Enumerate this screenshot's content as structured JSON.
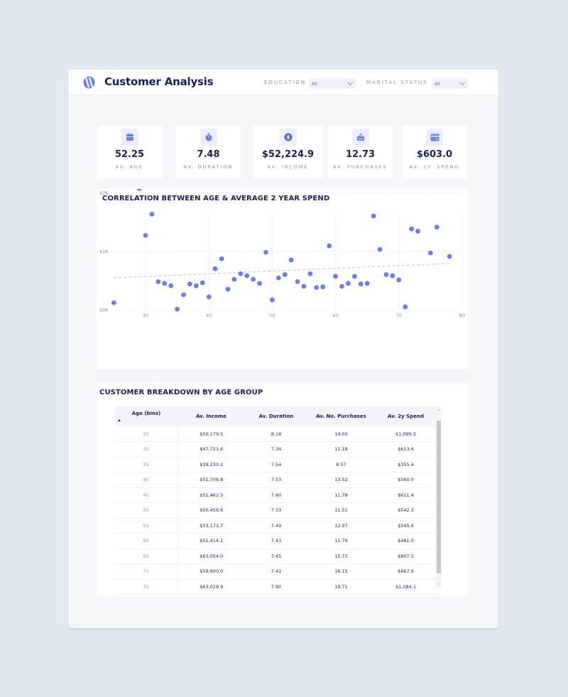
{
  "header": {
    "title": "Customer Analysis",
    "filters": [
      {
        "label": "EDUCATION",
        "value": "All"
      },
      {
        "label": "MARITAL STATUS",
        "value": "All"
      }
    ]
  },
  "kpis": [
    {
      "icon": "calendar-icon",
      "value": "52.25",
      "label": "AV. AGE"
    },
    {
      "icon": "stopwatch-icon",
      "value": "7.48",
      "label": "AV. DURATION"
    },
    {
      "icon": "dollar-coin-icon",
      "value": "$52,224.9",
      "label": "AV. INCOME"
    },
    {
      "icon": "shopping-basket-icon",
      "value": "12.73",
      "label": "AV. PURCHASES"
    },
    {
      "icon": "credit-card-icon",
      "value": "$603.0",
      "label": "AV. 2Y. SPEND"
    }
  ],
  "colors": {
    "accent": "#6b7fe3",
    "navy": "#1a2056",
    "trend": "#c8cbd8"
  },
  "chart_data": {
    "type": "scatter",
    "title": "CORRELATION BETWEEN AGE & AVERAGE 2 YEAR SPEND",
    "xlabel": "",
    "ylabel": "",
    "x_ticks": [
      "30",
      "40",
      "50",
      "60",
      "70",
      "80"
    ],
    "y_ticks": [
      "$0K",
      "$1K",
      "$2K"
    ],
    "xlim": [
      25,
      80
    ],
    "ylim": [
      0,
      2200
    ],
    "grid": true,
    "trendline": {
      "style": "dashed",
      "from": [
        25,
        545
      ],
      "to": [
        78,
        790
      ]
    },
    "points": [
      [
        25,
        120
      ],
      [
        29,
        2070
      ],
      [
        30,
        1270
      ],
      [
        31,
        1630
      ],
      [
        32,
        480
      ],
      [
        33,
        450
      ],
      [
        34,
        410
      ],
      [
        35,
        10
      ],
      [
        36,
        255
      ],
      [
        37,
        440
      ],
      [
        38,
        410
      ],
      [
        39,
        460
      ],
      [
        40,
        220
      ],
      [
        41,
        700
      ],
      [
        42,
        870
      ],
      [
        43,
        350
      ],
      [
        44,
        520
      ],
      [
        45,
        615
      ],
      [
        46,
        580
      ],
      [
        47,
        520
      ],
      [
        48,
        450
      ],
      [
        49,
        980
      ],
      [
        50,
        170
      ],
      [
        51,
        545
      ],
      [
        52,
        600
      ],
      [
        53,
        850
      ],
      [
        54,
        480
      ],
      [
        55,
        400
      ],
      [
        56,
        615
      ],
      [
        57,
        380
      ],
      [
        58,
        390
      ],
      [
        59,
        1090
      ],
      [
        60,
        570
      ],
      [
        61,
        400
      ],
      [
        62,
        450
      ],
      [
        63,
        570
      ],
      [
        64,
        440
      ],
      [
        65,
        450
      ],
      [
        66,
        1600
      ],
      [
        67,
        1030
      ],
      [
        68,
        600
      ],
      [
        69,
        580
      ],
      [
        70,
        510
      ],
      [
        71,
        50
      ],
      [
        72,
        1380
      ],
      [
        73,
        1340
      ],
      [
        75,
        970
      ],
      [
        76,
        1410
      ],
      [
        78,
        910
      ]
    ]
  },
  "table": {
    "title": "CUSTOMER BREAKDOWN BY AGE GROUP",
    "columns": [
      "Age (bins)",
      "Av. Income",
      "Av. Duration",
      "Av. No. Purchases",
      "Av. 2y Spend"
    ],
    "rows": [
      [
        "25",
        "$50,179.5",
        "8.18",
        "14.00",
        "$1,099.5"
      ],
      [
        "30",
        "$47,721.6",
        "7.34",
        "12.18",
        "$613.6"
      ],
      [
        "35",
        "$39,230.2",
        "7.54",
        "8.57",
        "$355.4"
      ],
      [
        "40",
        "$51,706.8",
        "7.53",
        "13.52",
        "$560.0"
      ],
      [
        "45",
        "$51,462.5",
        "7.60",
        "11.78",
        "$611.4"
      ],
      [
        "50",
        "$50,456.6",
        "7.33",
        "11.51",
        "$542.3"
      ],
      [
        "55",
        "$53,171.7",
        "7.49",
        "12.97",
        "$545.6"
      ],
      [
        "60",
        "$51,414.1",
        "7.43",
        "11.79",
        "$481.0"
      ],
      [
        "65",
        "$63,054.0",
        "7.45",
        "15.73",
        "$807.5"
      ],
      [
        "70",
        "$59,900.0",
        "7.41",
        "16.15",
        "$867.9"
      ],
      [
        "75",
        "$63,028.9",
        "7.90",
        "19.71",
        "$1,084.1"
      ]
    ]
  }
}
